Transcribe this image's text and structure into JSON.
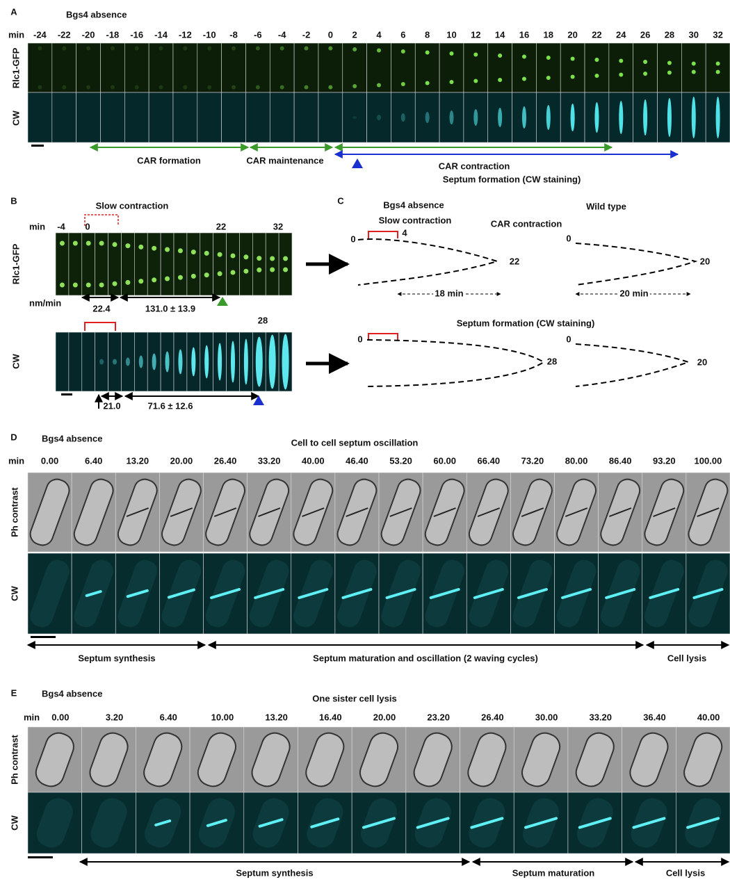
{
  "panel_a": {
    "letter": "A",
    "title": "Bgs4 absence",
    "min_label": "min",
    "times": [
      "-24",
      "-22",
      "-20",
      "-18",
      "-16",
      "-14",
      "-12",
      "-10",
      "-8",
      "-6",
      "-4",
      "-2",
      "0",
      "2",
      "4",
      "6",
      "8",
      "10",
      "12",
      "14",
      "16",
      "18",
      "20",
      "22",
      "24",
      "26",
      "28",
      "30",
      "32"
    ],
    "rows": [
      "Rlc1-GFP",
      "CW"
    ],
    "phases": [
      "CAR formation",
      "CAR maintenance",
      "CAR contraction",
      "Septum formation (CW staining)"
    ]
  },
  "panel_b": {
    "letter": "B",
    "slow_label": "Slow contraction",
    "min_label": "min",
    "times": [
      "-4",
      "0",
      "22",
      "32"
    ],
    "row_top": "Rlc1-GFP",
    "rate_unit": "nm/min",
    "rates_top": [
      "22.4",
      "131.0 ± 13.9"
    ],
    "cw_time": "28",
    "row_bottom": "CW",
    "rates_bottom": [
      "21.0",
      "71.6 ± 12.6"
    ]
  },
  "panel_c": {
    "letter": "C",
    "bgs4_title": "Bgs4 absence",
    "slow_label": "Slow contraction",
    "wt_title": "Wild type",
    "car_title": "CAR contraction",
    "car_bgs4_labels": [
      "0",
      "4",
      "22"
    ],
    "car_bgs4_span": "18 min",
    "car_wt_labels": [
      "0",
      "20"
    ],
    "car_wt_span": "20 min",
    "septum_title": "Septum formation (CW staining)",
    "septum_bgs4_labels": [
      "0",
      "28"
    ],
    "septum_wt_labels": [
      "0",
      "20"
    ]
  },
  "panel_d": {
    "letter": "D",
    "title": "Bgs4 absence",
    "subtitle": "Cell to cell septum oscillation",
    "min_label": "min",
    "times": [
      "0.00",
      "6.40",
      "13.20",
      "20.00",
      "26.40",
      "33.20",
      "40.00",
      "46.40",
      "53.20",
      "60.00",
      "66.40",
      "73.20",
      "80.00",
      "86.40",
      "93.20",
      "100.00"
    ],
    "rows": [
      "Ph contrast",
      "CW"
    ],
    "phases": [
      "Septum synthesis",
      "Septum maturation and oscillation (2 waving cycles)",
      "Cell lysis"
    ]
  },
  "panel_e": {
    "letter": "E",
    "title": "Bgs4 absence",
    "subtitle": "One sister cell lysis",
    "min_label": "min",
    "times": [
      "0.00",
      "3.20",
      "6.40",
      "10.00",
      "13.20",
      "16.40",
      "20.00",
      "23.20",
      "26.40",
      "30.00",
      "33.20",
      "36.40",
      "40.00"
    ],
    "rows": [
      "Ph contrast",
      "CW"
    ],
    "phases": [
      "Septum synthesis",
      "Septum maturation",
      "Cell lysis"
    ]
  }
}
